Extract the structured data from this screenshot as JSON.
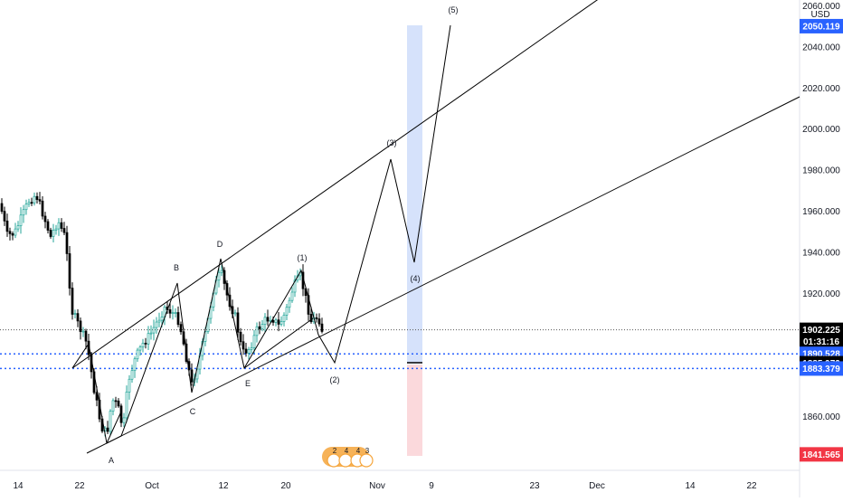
{
  "chart_data": {
    "type": "candlestick",
    "currency": "USD",
    "y_axis": {
      "ylim": [
        1840,
        2060
      ],
      "ticks": [
        2060,
        2040,
        2020,
        2000,
        1980,
        1960,
        1940,
        1920,
        1860
      ],
      "tick_labels": [
        "2060.000",
        "2040.000",
        "2020.000",
        "2000.000",
        "1980.000",
        "1960.000",
        "1940.000",
        "1920.000",
        "1860.000"
      ]
    },
    "x_axis": {
      "tick_labels": [
        "14",
        "22",
        "Oct",
        "12",
        "20",
        "Nov",
        "9",
        "23",
        "Dec",
        "14",
        "22"
      ]
    },
    "price_labels": [
      {
        "value": 2050.119,
        "text": "2050.119",
        "color": "#2962ff",
        "text_color": "#ffffff"
      },
      {
        "value": 1902.225,
        "text": "1902.225",
        "color": "#000000",
        "text_color": "#ffffff"
      },
      {
        "value": 1896.5,
        "text": "01:31:16",
        "color": "#000000",
        "text_color": "#ffffff"
      },
      {
        "value": 1890.528,
        "text": "1890.528",
        "color": "#2962ff",
        "text_color": "#ffffff"
      },
      {
        "value": 1885.973,
        "text": "1885.973",
        "color": "#000000",
        "text_color": "#ffffff"
      },
      {
        "value": 1883.379,
        "text": "1883.379",
        "color": "#2962ff",
        "text_color": "#ffffff"
      },
      {
        "value": 1841.565,
        "text": "1841.565",
        "color": "#f23645",
        "text_color": "#ffffff"
      }
    ],
    "horizontal_lines": [
      {
        "value": 1902.225,
        "style": "dotted",
        "color": "#555555"
      },
      {
        "value": 1890.528,
        "style": "dotted",
        "color": "#2962ff"
      },
      {
        "value": 1883.379,
        "style": "dotted",
        "color": "#2962ff"
      }
    ],
    "wave_labels": [
      "A",
      "B",
      "C",
      "D",
      "E",
      "(1)",
      "(2)",
      "(3)",
      "(4)",
      "(5)"
    ],
    "event_badges": [
      "2",
      "4",
      "4",
      "3"
    ],
    "colors": {
      "up": "#26a69a",
      "down": "#000000",
      "line": "#000000",
      "long_target": "#d6e2fb",
      "stop": "#fbd9dc"
    }
  }
}
